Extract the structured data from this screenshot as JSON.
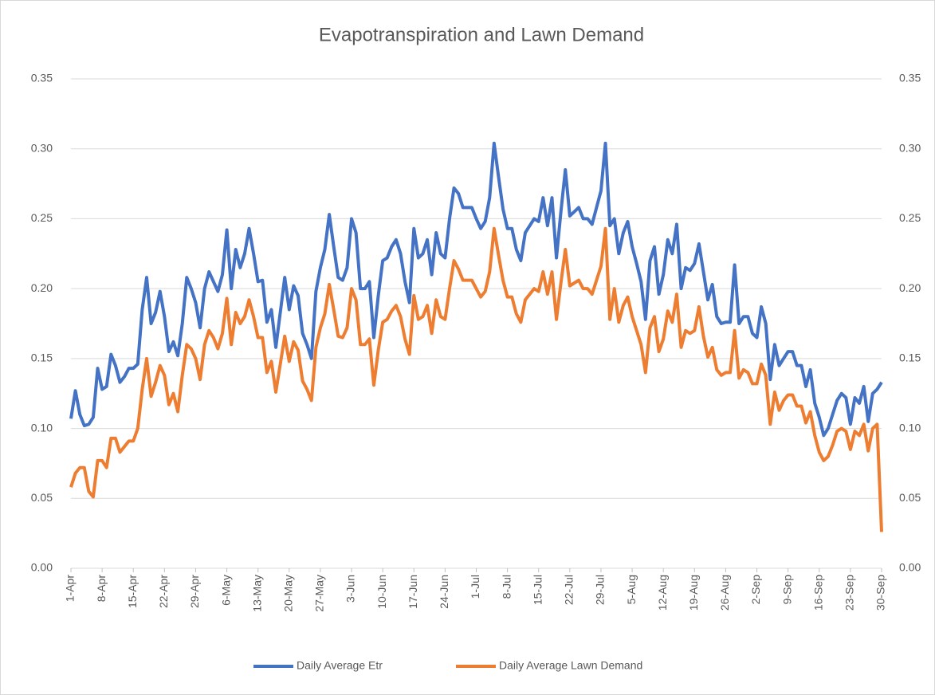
{
  "chart_data": {
    "type": "line",
    "title": "Evapotranspiration and Lawn Demand",
    "categories": [
      "1-Apr",
      null,
      null,
      null,
      null,
      null,
      null,
      "8-Apr",
      null,
      null,
      null,
      null,
      null,
      null,
      "15-Apr",
      null,
      null,
      null,
      null,
      null,
      null,
      "22-Apr",
      null,
      null,
      null,
      null,
      null,
      null,
      "29-Apr",
      null,
      null,
      null,
      null,
      null,
      null,
      "6-May",
      null,
      null,
      null,
      null,
      null,
      null,
      "13-May",
      null,
      null,
      null,
      null,
      null,
      null,
      "20-May",
      null,
      null,
      null,
      null,
      null,
      null,
      "27-May",
      null,
      null,
      null,
      null,
      null,
      null,
      "3-Jun",
      null,
      null,
      null,
      null,
      null,
      null,
      "10-Jun",
      null,
      null,
      null,
      null,
      null,
      null,
      "17-Jun",
      null,
      null,
      null,
      null,
      null,
      null,
      "24-Jun",
      null,
      null,
      null,
      null,
      null,
      null,
      "1-Jul",
      null,
      null,
      null,
      null,
      null,
      null,
      "8-Jul",
      null,
      null,
      null,
      null,
      null,
      null,
      "15-Jul",
      null,
      null,
      null,
      null,
      null,
      null,
      "22-Jul",
      null,
      null,
      null,
      null,
      null,
      null,
      "29-Jul",
      null,
      null,
      null,
      null,
      null,
      null,
      "5-Aug",
      null,
      null,
      null,
      null,
      null,
      null,
      "12-Aug",
      null,
      null,
      null,
      null,
      null,
      null,
      "19-Aug",
      null,
      null,
      null,
      null,
      null,
      null,
      "26-Aug",
      null,
      null,
      null,
      null,
      null,
      null,
      "2-Sep",
      null,
      null,
      null,
      null,
      null,
      null,
      "9-Sep",
      null,
      null,
      null,
      null,
      null,
      null,
      "16-Sep",
      null,
      null,
      null,
      null,
      null,
      null,
      "23-Sep",
      null,
      null,
      null,
      null,
      null,
      null,
      "30-Sep"
    ],
    "series": [
      {
        "name": "Daily Average Etr",
        "color": "#4472c4",
        "values": [
          0.107,
          0.127,
          0.11,
          0.102,
          0.103,
          0.108,
          0.143,
          0.128,
          0.13,
          0.153,
          0.145,
          0.133,
          0.137,
          0.143,
          0.143,
          0.146,
          0.185,
          0.208,
          0.175,
          0.183,
          0.198,
          0.18,
          0.155,
          0.162,
          0.152,
          0.175,
          0.208,
          0.2,
          0.19,
          0.172,
          0.2,
          0.212,
          0.205,
          0.198,
          0.21,
          0.242,
          0.2,
          0.228,
          0.215,
          0.225,
          0.243,
          0.225,
          0.205,
          0.206,
          0.176,
          0.185,
          0.158,
          0.183,
          0.208,
          0.185,
          0.202,
          0.195,
          0.168,
          0.16,
          0.15,
          0.198,
          0.215,
          0.228,
          0.253,
          0.23,
          0.208,
          0.206,
          0.215,
          0.25,
          0.24,
          0.2,
          0.2,
          0.205,
          0.165,
          0.195,
          0.22,
          0.222,
          0.23,
          0.235,
          0.225,
          0.205,
          0.19,
          0.243,
          0.222,
          0.225,
          0.235,
          0.21,
          0.24,
          0.225,
          0.222,
          0.25,
          0.272,
          0.268,
          0.258,
          0.258,
          0.258,
          0.25,
          0.243,
          0.248,
          0.265,
          0.304,
          0.28,
          0.257,
          0.243,
          0.243,
          0.228,
          0.22,
          0.24,
          0.245,
          0.25,
          0.248,
          0.265,
          0.245,
          0.265,
          0.222,
          0.255,
          0.285,
          0.252,
          0.255,
          0.258,
          0.25,
          0.25,
          0.246,
          0.258,
          0.27,
          0.304,
          0.245,
          0.25,
          0.225,
          0.24,
          0.248,
          0.23,
          0.218,
          0.205,
          0.178,
          0.22,
          0.23,
          0.196,
          0.21,
          0.235,
          0.225,
          0.246,
          0.2,
          0.215,
          0.213,
          0.218,
          0.232,
          0.212,
          0.192,
          0.203,
          0.18,
          0.175,
          0.176,
          0.176,
          0.217,
          0.175,
          0.18,
          0.18,
          0.168,
          0.165,
          0.187,
          0.175,
          0.135,
          0.16,
          0.145,
          0.15,
          0.155,
          0.155,
          0.145,
          0.145,
          0.13,
          0.142,
          0.118,
          0.108,
          0.095,
          0.1,
          0.11,
          0.12,
          0.125,
          0.122,
          0.103,
          0.122,
          0.118,
          0.13,
          0.105,
          0.125,
          0.128,
          0.133
        ]
      },
      {
        "name": "Daily Average Lawn Demand",
        "color": "#ed7d31",
        "values": [
          0.058,
          0.068,
          0.072,
          0.072,
          0.055,
          0.051,
          0.077,
          0.077,
          0.072,
          0.093,
          0.093,
          0.083,
          0.087,
          0.091,
          0.091,
          0.1,
          0.128,
          0.15,
          0.123,
          0.133,
          0.145,
          0.138,
          0.117,
          0.125,
          0.112,
          0.138,
          0.16,
          0.157,
          0.15,
          0.135,
          0.16,
          0.17,
          0.165,
          0.157,
          0.168,
          0.193,
          0.16,
          0.183,
          0.175,
          0.18,
          0.192,
          0.18,
          0.165,
          0.165,
          0.14,
          0.148,
          0.126,
          0.146,
          0.166,
          0.148,
          0.162,
          0.156,
          0.134,
          0.128,
          0.12,
          0.158,
          0.172,
          0.182,
          0.203,
          0.185,
          0.166,
          0.165,
          0.172,
          0.2,
          0.192,
          0.16,
          0.16,
          0.164,
          0.131,
          0.156,
          0.176,
          0.178,
          0.184,
          0.188,
          0.18,
          0.164,
          0.153,
          0.195,
          0.178,
          0.18,
          0.188,
          0.168,
          0.192,
          0.18,
          0.178,
          0.2,
          0.22,
          0.214,
          0.206,
          0.206,
          0.206,
          0.2,
          0.194,
          0.198,
          0.212,
          0.243,
          0.224,
          0.206,
          0.194,
          0.194,
          0.182,
          0.176,
          0.192,
          0.196,
          0.2,
          0.198,
          0.212,
          0.196,
          0.212,
          0.178,
          0.204,
          0.228,
          0.202,
          0.204,
          0.206,
          0.2,
          0.2,
          0.196,
          0.206,
          0.216,
          0.243,
          0.178,
          0.2,
          0.176,
          0.188,
          0.194,
          0.18,
          0.17,
          0.16,
          0.14,
          0.172,
          0.18,
          0.155,
          0.164,
          0.184,
          0.176,
          0.196,
          0.158,
          0.17,
          0.168,
          0.17,
          0.187,
          0.166,
          0.151,
          0.158,
          0.142,
          0.138,
          0.14,
          0.14,
          0.17,
          0.136,
          0.142,
          0.14,
          0.132,
          0.132,
          0.146,
          0.138,
          0.103,
          0.126,
          0.113,
          0.12,
          0.124,
          0.124,
          0.116,
          0.116,
          0.104,
          0.112,
          0.095,
          0.083,
          0.077,
          0.08,
          0.088,
          0.098,
          0.1,
          0.098,
          0.085,
          0.098,
          0.095,
          0.103,
          0.084,
          0.1,
          0.103,
          0.026
        ]
      }
    ],
    "ylim": [
      0,
      0.35
    ],
    "yticks": [
      {
        "value": 0,
        "label": "0.00"
      },
      0.05,
      {
        "value": 0.1,
        "label": "0.10"
      },
      0.15,
      {
        "value": 0.2,
        "label": "0.20"
      },
      0.25,
      {
        "value": 0.3,
        "label": "0.30"
      },
      0.35
    ],
    "y2lim": [
      0,
      0.35
    ],
    "y2ticks": [
      {
        "value": 0,
        "label": "0.00"
      },
      0.05,
      {
        "value": 0.1,
        "label": "0.10"
      },
      0.15,
      {
        "value": 0.2,
        "label": "0.20"
      },
      0.25,
      {
        "value": 0.3,
        "label": "0.30"
      },
      0.35
    ],
    "grid": true,
    "legend": "bottom"
  }
}
